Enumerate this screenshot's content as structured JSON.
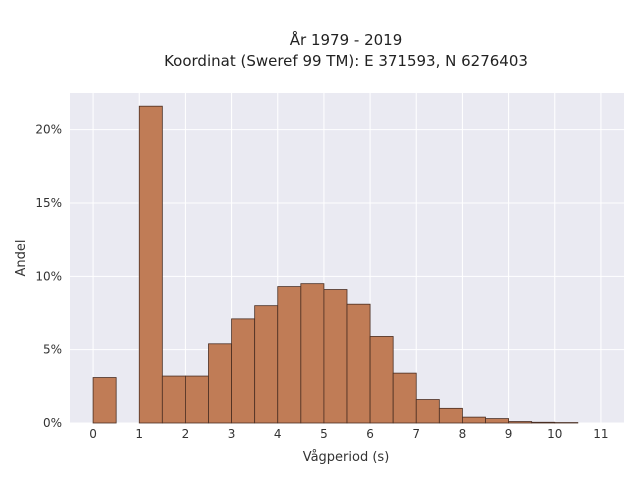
{
  "chart_data": {
    "type": "bar",
    "title_line1": "År 1979 - 2019",
    "title_line2": "Koordinat (Sweref 99 TM): E 371593, N 6276403",
    "xlabel": "Vågperiod (s)",
    "ylabel": "Andel",
    "xlim": [
      -0.5,
      11.5
    ],
    "ylim": [
      0,
      22.5
    ],
    "bin_width": 0.5,
    "xticks": [
      0,
      1,
      2,
      3,
      4,
      5,
      6,
      7,
      8,
      9,
      10,
      11
    ],
    "xtick_labels": [
      "0",
      "1",
      "2",
      "3",
      "4",
      "5",
      "6",
      "7",
      "8",
      "9",
      "10",
      "11"
    ],
    "yticks": [
      0,
      5,
      10,
      15,
      20
    ],
    "ytick_labels": [
      "0%",
      "5%",
      "10%",
      "15%",
      "20%"
    ],
    "bars": [
      {
        "x0": 0.0,
        "value": 3.1
      },
      {
        "x0": 0.5,
        "value": 0
      },
      {
        "x0": 1.0,
        "value": 21.6
      },
      {
        "x0": 1.5,
        "value": 3.2
      },
      {
        "x0": 2.0,
        "value": 3.2
      },
      {
        "x0": 2.5,
        "value": 5.4
      },
      {
        "x0": 3.0,
        "value": 7.1
      },
      {
        "x0": 3.5,
        "value": 8.0
      },
      {
        "x0": 4.0,
        "value": 9.3
      },
      {
        "x0": 4.5,
        "value": 9.5
      },
      {
        "x0": 5.0,
        "value": 9.1
      },
      {
        "x0": 5.5,
        "value": 8.1
      },
      {
        "x0": 6.0,
        "value": 5.9
      },
      {
        "x0": 6.5,
        "value": 3.4
      },
      {
        "x0": 7.0,
        "value": 1.6
      },
      {
        "x0": 7.5,
        "value": 1.0
      },
      {
        "x0": 8.0,
        "value": 0.4
      },
      {
        "x0": 8.5,
        "value": 0.3
      },
      {
        "x0": 9.0,
        "value": 0.1
      },
      {
        "x0": 9.5,
        "value": 0.05
      },
      {
        "x0": 10.0,
        "value": 0.03
      }
    ],
    "grid": true,
    "colors": {
      "bar_fill": "#c07c56",
      "bar_stroke": "#4a2e22",
      "plot_bg": "#eaeaf2",
      "grid": "#ffffff"
    }
  }
}
